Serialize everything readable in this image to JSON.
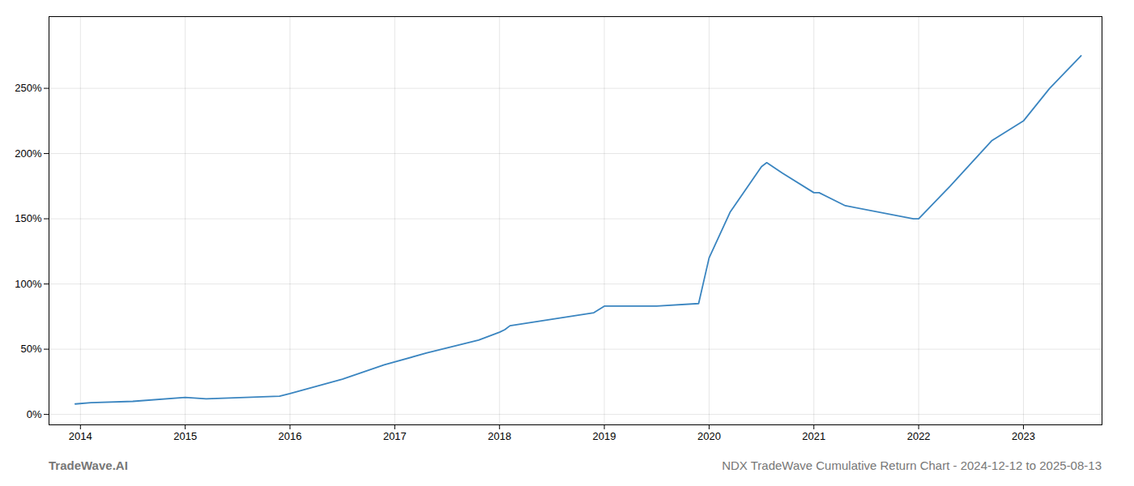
{
  "chart_data": {
    "type": "line",
    "title": "TradeWave.AI",
    "subtitle": "NDX TradeWave Cumulative Return Chart - 2024-12-12 to 2025-08-13",
    "x": [
      2013.95,
      2014.1,
      2014.5,
      2015.0,
      2015.2,
      2015.9,
      2016.0,
      2016.5,
      2016.9,
      2017.3,
      2017.8,
      2018.0,
      2018.05,
      2018.1,
      2018.5,
      2018.9,
      2019.0,
      2019.5,
      2019.9,
      2020.0,
      2020.2,
      2020.5,
      2020.55,
      2020.7,
      2021.0,
      2021.05,
      2021.3,
      2021.95,
      2022.0,
      2022.3,
      2022.7,
      2023.0,
      2023.25,
      2023.55
    ],
    "values": [
      8,
      9,
      10,
      13,
      12,
      14,
      16,
      27,
      38,
      47,
      57,
      63,
      65,
      68,
      73,
      78,
      83,
      83,
      85,
      120,
      155,
      190,
      193,
      185,
      170,
      170,
      160,
      150,
      150,
      175,
      210,
      225,
      250,
      275
    ],
    "color": "#3a85c0",
    "xlim": [
      2013.7,
      2023.75
    ],
    "xticks": [
      2014,
      2015,
      2016,
      2017,
      2018,
      2019,
      2020,
      2021,
      2022,
      2023
    ],
    "ylim": [
      -8,
      305
    ],
    "yticks": [
      {
        "value": 0,
        "label": "0%"
      },
      {
        "value": 50,
        "label": "50%"
      },
      {
        "value": 100,
        "label": "100%"
      },
      {
        "value": 150,
        "label": "150%"
      },
      {
        "value": 200,
        "label": "200%"
      },
      {
        "value": 250,
        "label": "250%"
      }
    ],
    "grid": true
  }
}
